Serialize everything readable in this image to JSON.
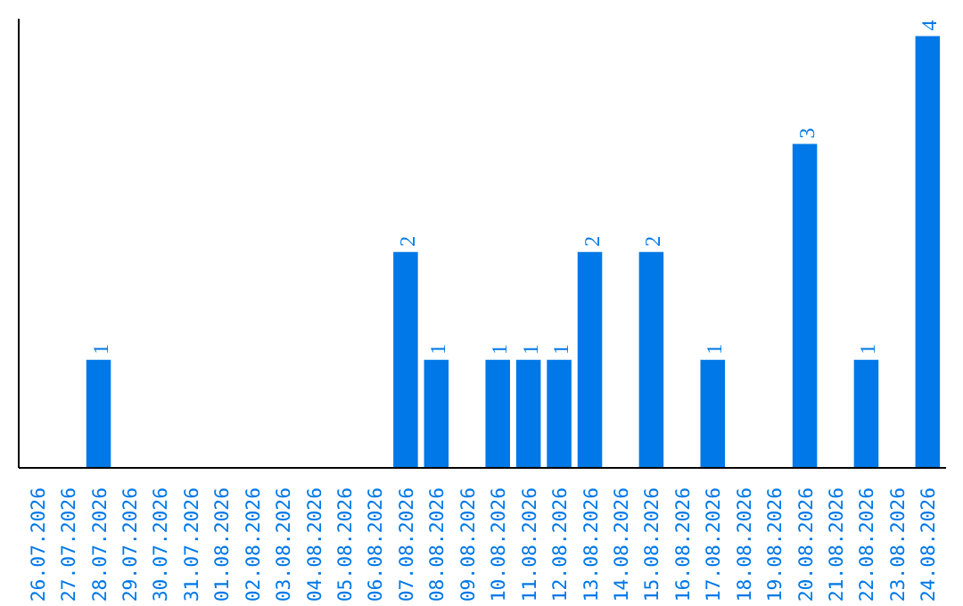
{
  "chart_data": {
    "type": "bar",
    "categories": [
      "26.07.2026",
      "27.07.2026",
      "28.07.2026",
      "29.07.2026",
      "30.07.2026",
      "31.07.2026",
      "01.08.2026",
      "02.08.2026",
      "03.08.2026",
      "04.08.2026",
      "05.08.2026",
      "06.08.2026",
      "07.08.2026",
      "08.08.2026",
      "09.08.2026",
      "10.08.2026",
      "11.08.2026",
      "12.08.2026",
      "13.08.2026",
      "14.08.2026",
      "15.08.2026",
      "16.08.2026",
      "17.08.2026",
      "18.08.2026",
      "19.08.2026",
      "20.08.2026",
      "21.08.2026",
      "22.08.2026",
      "23.08.2026",
      "24.08.2026"
    ],
    "values": [
      null,
      null,
      1,
      null,
      null,
      null,
      null,
      null,
      null,
      null,
      null,
      null,
      2,
      1,
      null,
      1,
      1,
      1,
      2,
      null,
      2,
      null,
      1,
      null,
      null,
      3,
      null,
      1,
      null,
      4
    ],
    "color": "#0078e7",
    "ylim": [
      0,
      4.16
    ],
    "data_labels": true,
    "tick_labels": "x"
  }
}
